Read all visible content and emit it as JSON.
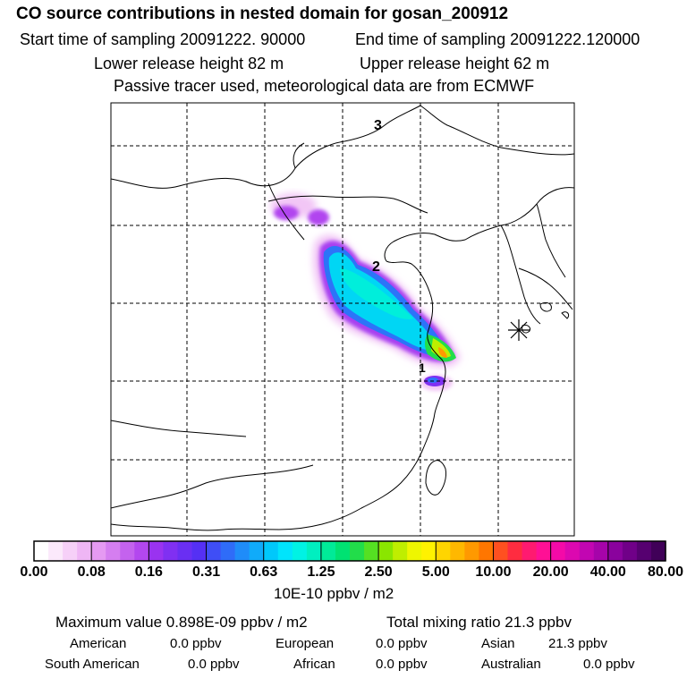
{
  "header": {
    "title": "CO  source contributions in nested domain for gosan_200912",
    "start_time": "Start time of sampling 20091222. 90000",
    "end_time": "End time of sampling 20091222.120000",
    "lower_release": "Lower release height   82 m",
    "upper_release": "Upper release height   62 m",
    "note": "Passive tracer used, meteorological data are from ECMWF"
  },
  "map": {
    "markers": [
      "1",
      "2",
      "3"
    ],
    "receptor_icon": "asterisk-receptor-icon"
  },
  "colorbar": {
    "tick_labels": [
      "0.00",
      "0.08",
      "0.16",
      "0.31",
      "0.63",
      "1.25",
      "2.50",
      "5.00",
      "10.00",
      "20.00",
      "40.00",
      "80.00"
    ],
    "units": "10E-10 ppbv / m2",
    "colors": [
      "#ffffff",
      "#fbe9fb",
      "#f6d0f8",
      "#efb6f5",
      "#e59af2",
      "#d57ef0",
      "#c462ee",
      "#b347ef",
      "#9a33f0",
      "#8030f2",
      "#6a2ff3",
      "#5530f4",
      "#3f4ef6",
      "#2f6cf8",
      "#1f8cf9",
      "#10abfa",
      "#00c8fb",
      "#00e4fc",
      "#00f2e4",
      "#00efc0",
      "#00ea98",
      "#00e272",
      "#22dd4a",
      "#55e022",
      "#8ae600",
      "#bfee00",
      "#eef600",
      "#fff200",
      "#ffd500",
      "#ffb800",
      "#ff9900",
      "#ff7600",
      "#ff5020",
      "#ff2c40",
      "#ff1a70",
      "#ff1095",
      "#f40aa8",
      "#dc08b0",
      "#c206b2",
      "#a604aa",
      "#8a029d",
      "#700088",
      "#560070",
      "#400058"
    ]
  },
  "stats": {
    "max_value": "Maximum value  0.898E-09 ppbv / m2",
    "total_mixing": "Total mixing ratio      21.3 ppbv",
    "sources": [
      {
        "label": "American",
        "value": "0.0 ppbv"
      },
      {
        "label": "European",
        "value": "0.0 ppbv"
      },
      {
        "label": "Asian",
        "value": "21.3 ppbv"
      },
      {
        "label": "South American",
        "value": "0.0 ppbv"
      },
      {
        "label": "African",
        "value": "0.0 ppbv"
      },
      {
        "label": "Australian",
        "value": "0.0 ppbv"
      }
    ]
  }
}
